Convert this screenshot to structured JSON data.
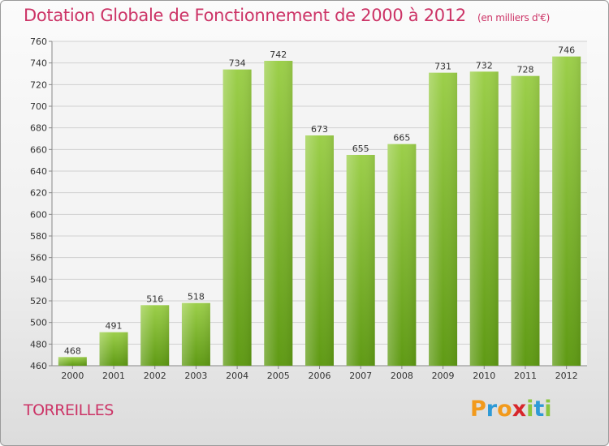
{
  "chart_data": {
    "type": "bar",
    "title": "Dotation Globale de Fonctionnement de 2000 à 2012",
    "unit": "(en milliers d'€)",
    "categories": [
      "2000",
      "2001",
      "2002",
      "2003",
      "2004",
      "2005",
      "2006",
      "2007",
      "2008",
      "2009",
      "2010",
      "2011",
      "2012"
    ],
    "values": [
      468,
      491,
      516,
      518,
      734,
      742,
      673,
      655,
      665,
      731,
      732,
      728,
      746
    ],
    "ylim": [
      460,
      760
    ],
    "yticks": [
      460,
      480,
      500,
      520,
      540,
      560,
      580,
      600,
      620,
      640,
      660,
      680,
      700,
      720,
      740,
      760
    ],
    "grid": true,
    "colors": {
      "bar_top": "#9ccf4a",
      "bar_bottom": "#5f9a14",
      "title": "#cc3366"
    }
  },
  "commune": "TORREILLES",
  "logo": {
    "text": "Proxiti",
    "letters": [
      {
        "ch": "P",
        "color": "#f29a1c"
      },
      {
        "ch": "r",
        "color": "#2f9ad6"
      },
      {
        "ch": "o",
        "color": "#f29a1c"
      },
      {
        "ch": "x",
        "color": "#d7262b"
      },
      {
        "ch": "i",
        "color": "#8cc63f"
      },
      {
        "ch": "t",
        "color": "#2f9ad6"
      },
      {
        "ch": "i",
        "color": "#8cc63f"
      }
    ]
  }
}
